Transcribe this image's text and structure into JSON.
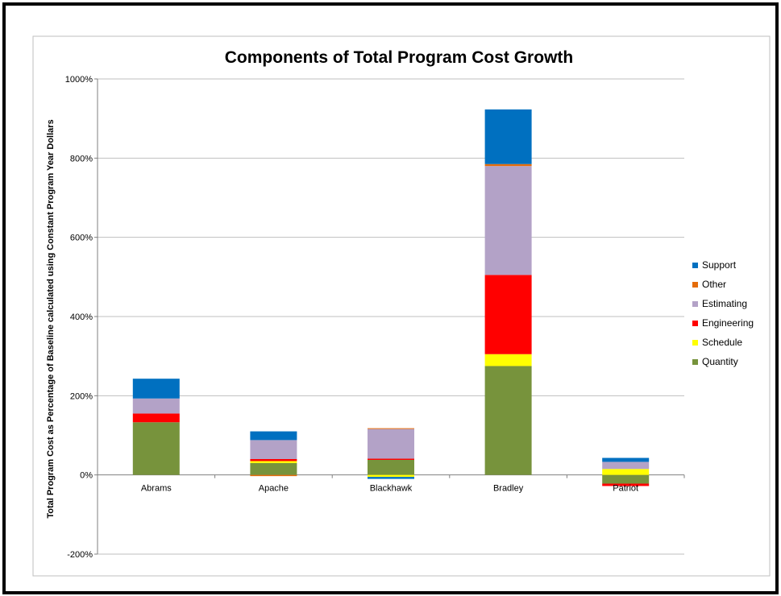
{
  "chart_data": {
    "type": "bar",
    "stacked": true,
    "title": "Components of Total Program Cost Growth",
    "xlabel": "",
    "ylabel": "Total Program Cost as Percentage of Baseline calculated using Constant Program Year Dollars",
    "ylim": [
      -200,
      1000
    ],
    "ytick_values": [
      -200,
      0,
      200,
      400,
      600,
      800,
      1000
    ],
    "ytick_labels": [
      "-200%",
      "0%",
      "200%",
      "400%",
      "600%",
      "800%",
      "1000%"
    ],
    "grid": true,
    "legend_position": "right",
    "categories": [
      "Abrams",
      "Apache",
      "Blackhawk",
      "Bradley",
      "Patriot"
    ],
    "series": [
      {
        "name": "Quantity",
        "color": "#77933c",
        "values": [
          133,
          30,
          38,
          275,
          -22
        ]
      },
      {
        "name": "Schedule",
        "color": "#ffff00",
        "values": [
          0,
          5,
          -5,
          30,
          15
        ]
      },
      {
        "name": "Engineering",
        "color": "#ff0000",
        "values": [
          22,
          5,
          3,
          200,
          -6
        ]
      },
      {
        "name": "Estimating",
        "color": "#b3a2c7",
        "values": [
          38,
          48,
          75,
          275,
          18
        ]
      },
      {
        "name": "Other",
        "color": "#e46c0a",
        "values": [
          0,
          -3,
          2,
          5,
          0
        ]
      },
      {
        "name": "Support",
        "color": "#0070c0",
        "values": [
          50,
          22,
          -5,
          138,
          10
        ]
      }
    ]
  }
}
